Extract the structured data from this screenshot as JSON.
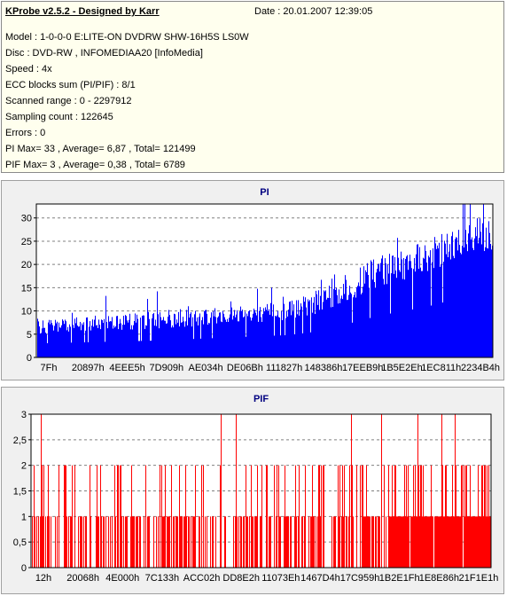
{
  "info": {
    "title": "KProbe v2.5.2 - Designed by Karr",
    "date": "Date : 20.01.2007 12:39:05",
    "lines": [
      "Model : 1-0-0-0 E:LITE-ON DVDRW SHW-16H5S  LS0W",
      "Disc : DVD-RW , INFOMEDIAA20 [InfoMedia]",
      "Speed : 4x",
      "ECC blocks sum (PI/PIF) : 8/1",
      "Scanned range : 0 - 2297912",
      "Sampling count : 122645",
      "Errors : 0",
      "PI Max= 33 , Average= 6,87 , Total= 121499",
      "PIF Max= 3 , Average= 0,38 , Total= 6789"
    ]
  },
  "chart_data": [
    {
      "type": "bar",
      "title": "PI",
      "color": "#0000ff",
      "ylim": [
        0,
        33
      ],
      "yticks": [
        "0",
        "5",
        "10",
        "15",
        "20",
        "25",
        "30"
      ],
      "xticks": [
        "7Fh",
        "20897h",
        "4EEE5h",
        "7D909h",
        "AE034h",
        "DE06Bh",
        "111827h",
        "148386h",
        "17EEB9h",
        "1B5E2Eh",
        "1EC811h",
        "2234B4h"
      ],
      "grid": true,
      "profile": [
        [
          0,
          5,
          8
        ],
        [
          0.25,
          6,
          10
        ],
        [
          0.55,
          8,
          12
        ],
        [
          0.6,
          9,
          14
        ],
        [
          0.68,
          12,
          18
        ],
        [
          0.75,
          15,
          22
        ],
        [
          0.85,
          18,
          25
        ],
        [
          0.92,
          21,
          28
        ],
        [
          1,
          22,
          31
        ]
      ],
      "max": 33
    },
    {
      "type": "bar",
      "title": "PIF",
      "color": "#ff0000",
      "ylim": [
        0,
        3
      ],
      "yticks": [
        "0",
        "0,5",
        "1",
        "1,5",
        "2",
        "2,5",
        "3"
      ],
      "xticks": [
        "12h",
        "20068h",
        "4E000h",
        "7C133h",
        "ACC02h",
        "DD8E2h",
        "11073Eh",
        "1467D4h",
        "17C959h",
        "1B2E1Fh",
        "1E8E86h",
        "21F1E1h"
      ],
      "grid": true,
      "max": 3
    }
  ]
}
